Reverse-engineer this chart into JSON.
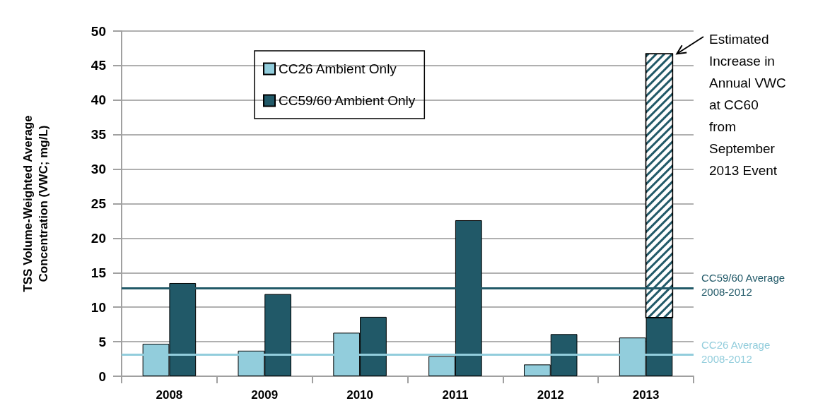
{
  "chart_data": {
    "type": "bar",
    "ylabel": "TSS Volume-Weighted Average\nConcentration (VWC; mg/L)",
    "categories": [
      "2008",
      "2009",
      "2010",
      "2011",
      "2012",
      "2013"
    ],
    "series": [
      {
        "name": "CC26 Ambient Only",
        "color": "#92cddc",
        "values": [
          4.7,
          3.7,
          6.3,
          2.9,
          1.7,
          5.6
        ]
      },
      {
        "name": "CC59/60 Ambient Only",
        "color": "#215968",
        "values": [
          13.5,
          11.9,
          8.6,
          22.6,
          6.1,
          8.5
        ]
      },
      {
        "color": "#215968",
        "values": [
          null,
          null,
          null,
          null,
          null,
          38.2
        ],
        "base": [
          null,
          null,
          null,
          null,
          null,
          8.5
        ]
      }
    ],
    "ylim": [
      0,
      50
    ],
    "yticks": [
      0,
      5,
      10,
      15,
      20,
      25,
      30,
      35,
      40,
      45,
      50
    ],
    "grid": "y",
    "legend": "top",
    "ref_lines": [
      {
        "axis": "y",
        "value": 12.8,
        "label": "CC59/60 Average\n2008-2012",
        "color": "#215968"
      },
      {
        "axis": "y",
        "value": 3.1,
        "label": "CC26 Average\n2008-2012",
        "color": "#92cddc"
      }
    ],
    "annotations": [
      "Estimated\nIncrease in\nAnnual VWC\nat CC60\nfrom\nSeptember\n2013 Event"
    ]
  }
}
